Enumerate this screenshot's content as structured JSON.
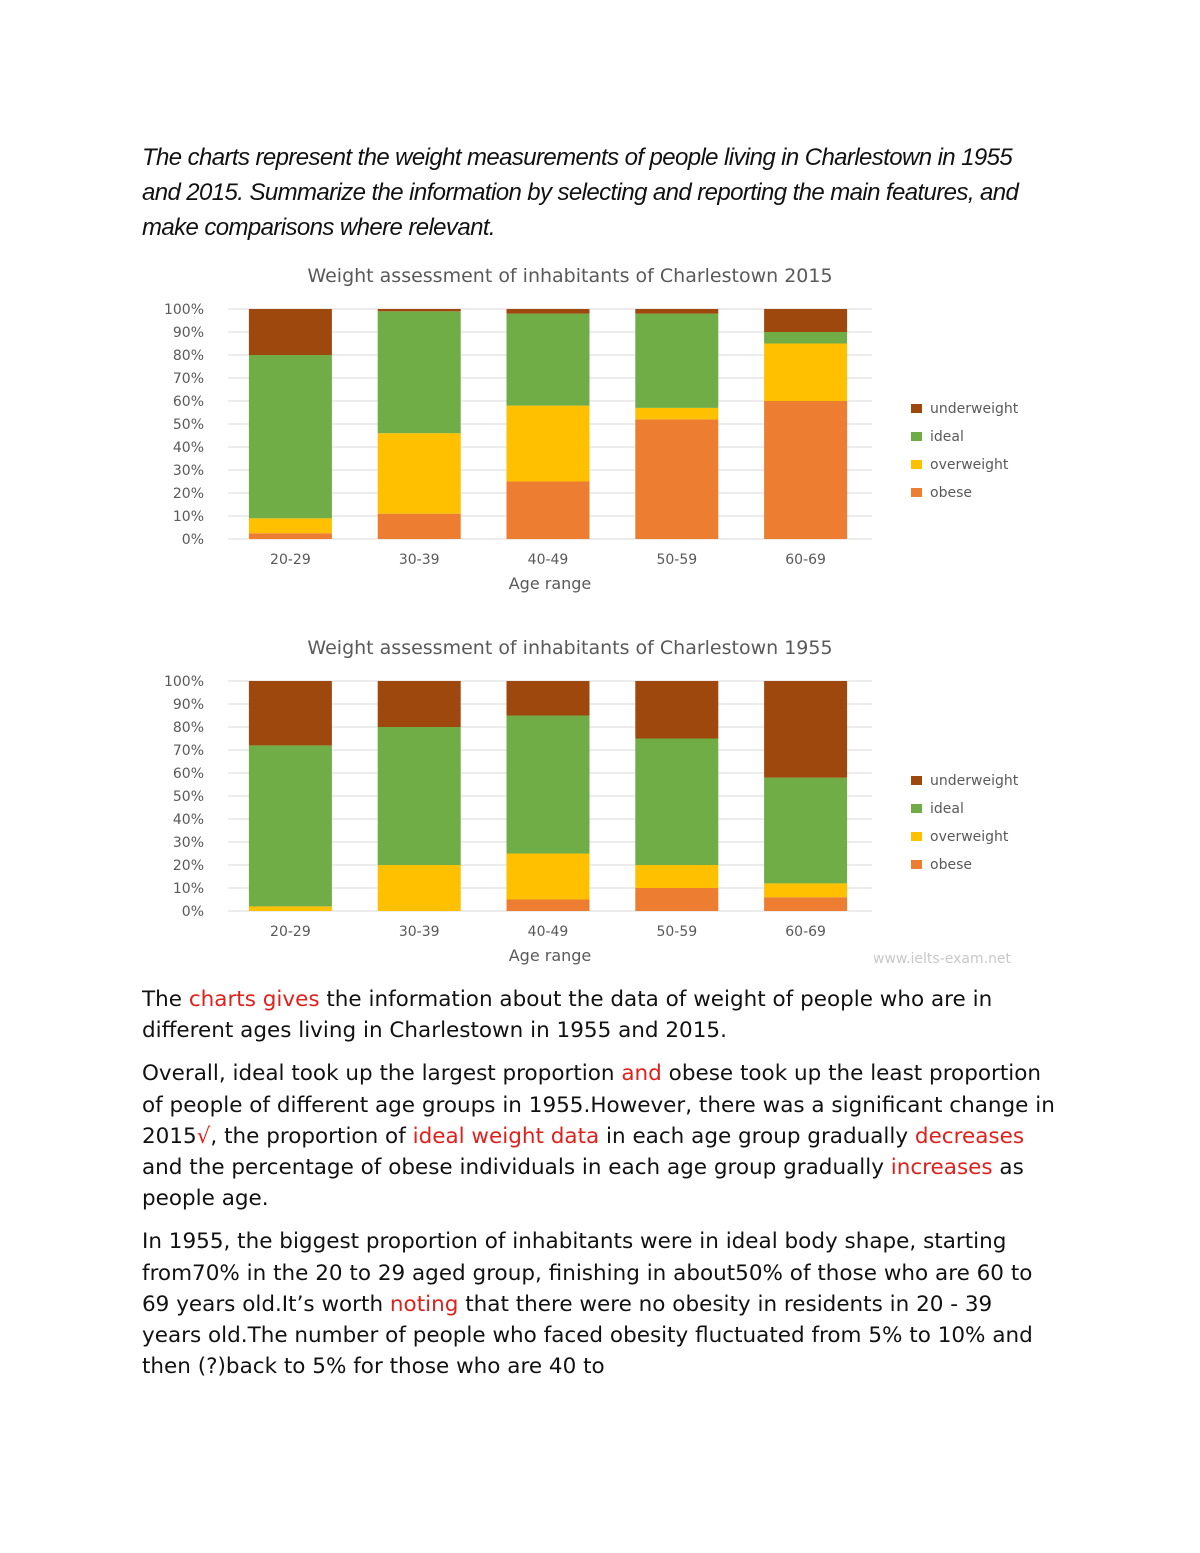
{
  "prompt": "The charts represent the weight measurements of people living in Charlestown in 1955 and 2015. Summarize the information by selecting and reporting the main features, and make comparisons where relevant.",
  "watermark": "www.ielts-exam.net",
  "colors": {
    "underweight": "#9e480e",
    "ideal": "#70ad47",
    "overweight": "#ffc000",
    "obese": "#ed7d31",
    "highlight": "#e0201b"
  },
  "chart_data": [
    {
      "type": "bar",
      "stacked": true,
      "title": "Weight assessment of inhabitants of Charlestown 2015",
      "xlabel": "Age range",
      "ylabel": "",
      "ylim": [
        0,
        100
      ],
      "yticks": [
        "0%",
        "10%",
        "20%",
        "30%",
        "40%",
        "50%",
        "60%",
        "70%",
        "80%",
        "90%",
        "100%"
      ],
      "grid": true,
      "legend": "right",
      "categories": [
        "20-29",
        "30-39",
        "40-49",
        "50-59",
        "60-69"
      ],
      "series": [
        {
          "name": "obese",
          "values": [
            2.5,
            11,
            25,
            52,
            60
          ]
        },
        {
          "name": "overweight",
          "values": [
            6.5,
            35,
            33,
            5,
            25
          ]
        },
        {
          "name": "ideal",
          "values": [
            71,
            53,
            40,
            41,
            5
          ]
        },
        {
          "name": "underweight",
          "values": [
            20,
            1,
            2,
            2,
            10
          ]
        }
      ]
    },
    {
      "type": "bar",
      "stacked": true,
      "title": "Weight assessment of inhabitants of Charlestown 1955",
      "xlabel": "Age range",
      "ylabel": "",
      "ylim": [
        0,
        100
      ],
      "yticks": [
        "0%",
        "10%",
        "20%",
        "30%",
        "40%",
        "50%",
        "60%",
        "70%",
        "80%",
        "90%",
        "100%"
      ],
      "grid": true,
      "legend": "right",
      "categories": [
        "20-29",
        "30-39",
        "40-49",
        "50-59",
        "60-69"
      ],
      "series": [
        {
          "name": "obese",
          "values": [
            0,
            0,
            5,
            10,
            6
          ]
        },
        {
          "name": "overweight",
          "values": [
            2,
            20,
            20,
            10,
            6
          ]
        },
        {
          "name": "ideal",
          "values": [
            70,
            60,
            60,
            55,
            46
          ]
        },
        {
          "name": "underweight",
          "values": [
            28,
            20,
            15,
            25,
            42
          ]
        }
      ]
    }
  ],
  "essay": [
    [
      {
        "text": "The ",
        "red": false
      },
      {
        "text": "charts gives",
        "red": true
      },
      {
        "text": " the information about the data of weight of people who are in different ages living in Charlestown in 1955 and 2015.",
        "red": false
      }
    ],
    [
      {
        "text": "Overall, ideal took up the largest proportion  ",
        "red": false
      },
      {
        "text": "and",
        "red": true
      },
      {
        "text": " obese took up the least proportion of people of different age groups in 1955.However, there was a significant change in 2015",
        "red": false
      },
      {
        "text": "√",
        "red": true
      },
      {
        "text": ", the proportion of ",
        "red": false
      },
      {
        "text": "ideal weight data",
        "red": true
      },
      {
        "text": " in each age group gradually ",
        "red": false
      },
      {
        "text": "decreases",
        "red": true
      },
      {
        "text": " and the percentage of obese individuals in each age group gradually ",
        "red": false
      },
      {
        "text": "increases",
        "red": true
      },
      {
        "text": " as people age.",
        "red": false
      }
    ],
    [
      {
        "text": "In 1955, the biggest proportion of inhabitants were in ideal body shape, starting from70% in the 20 to 29 aged group, finishing in about50% of those who are 60 to 69 years old.It’s worth ",
        "red": false
      },
      {
        "text": "noting",
        "red": true
      },
      {
        "text": " that there were no obesity in residents in 20 - 39 years old.The number of people who faced obesity fluctuated from 5% to 10% and then (?)back to 5% for those who are 40 to",
        "red": false
      }
    ]
  ]
}
